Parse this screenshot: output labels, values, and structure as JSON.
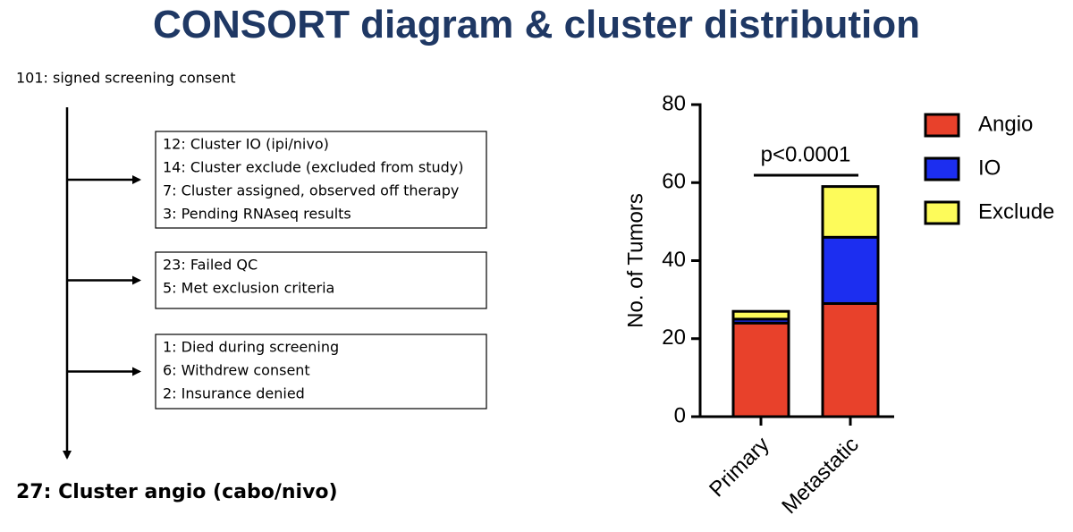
{
  "title": "CONSORT diagram & cluster distribution",
  "consort": {
    "enrolled": "101: signed screening consent",
    "boxes": [
      [
        "12: Cluster IO (ipi/nivo)",
        "14: Cluster exclude (excluded from study)",
        "7: Cluster assigned, observed off therapy",
        "3: Pending RNAseq results"
      ],
      [
        "23: Failed QC",
        "5: Met exclusion criteria"
      ],
      [
        "1: Died during screening",
        "6: Withdrew consent",
        "2: Insurance denied"
      ]
    ],
    "result": "27: Cluster angio (cabo/nivo)"
  },
  "chart_data": {
    "type": "stacked_bar",
    "ylabel": "No. of Tumors",
    "annotation": "p<0.0001",
    "categories": [
      "Primary",
      "Metastatic"
    ],
    "series": [
      {
        "name": "Angio",
        "color": "#e8412b",
        "values": [
          24,
          29
        ]
      },
      {
        "name": "IO",
        "color": "#1c2ef0",
        "values": [
          1,
          17
        ]
      },
      {
        "name": "Exclude",
        "color": "#fdfb5a",
        "values": [
          2,
          13
        ]
      }
    ],
    "ylim": [
      0,
      80
    ],
    "yticks": [
      0,
      20,
      40,
      60,
      80
    ],
    "legend": "right"
  }
}
